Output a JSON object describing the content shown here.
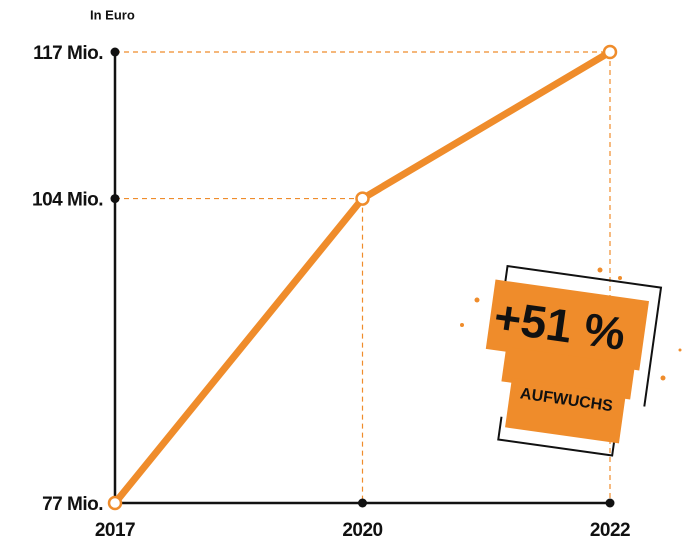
{
  "chart_data": {
    "type": "line",
    "y_label": "In Euro",
    "categories": [
      "2017",
      "2020",
      "2022"
    ],
    "values": [
      77,
      104,
      117
    ],
    "color": "#ef8c2b",
    "ylim": [
      77,
      117
    ],
    "yticks": [
      {
        "value": 77,
        "label": "77 Mio."
      },
      {
        "value": 104,
        "label": "104 Mio."
      },
      {
        "value": 117,
        "label": "117 Mio."
      }
    ],
    "annotation": {
      "text": "+51 %",
      "subtext": "AUFWUCHS"
    }
  }
}
